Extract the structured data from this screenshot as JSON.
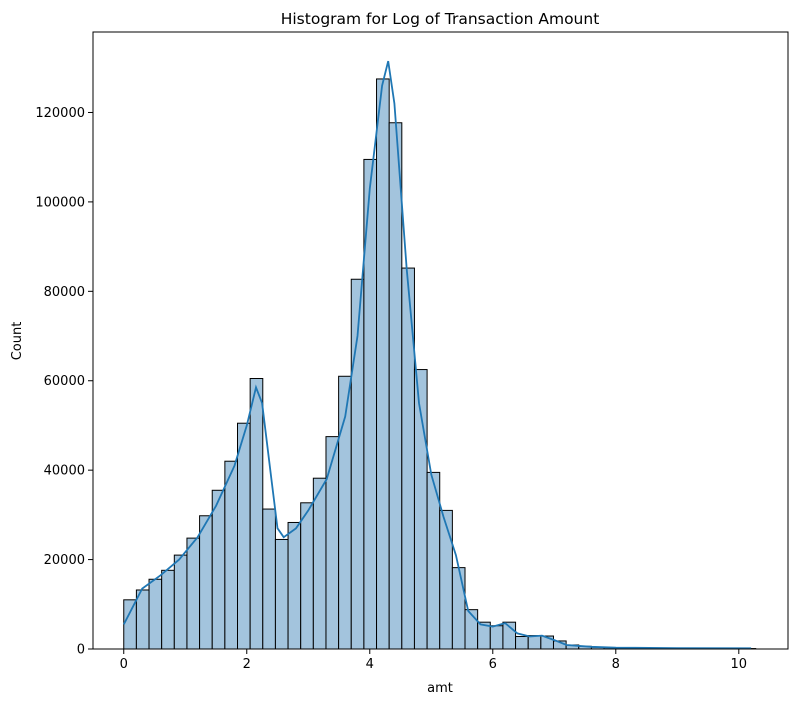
{
  "chart_data": {
    "type": "bar",
    "title": "Histogram for Log of Transaction Amount",
    "xlabel": "amt",
    "ylabel": "Count",
    "xlim": [
      -0.5,
      10.8
    ],
    "ylim": [
      0,
      138000
    ],
    "xticks": [
      0,
      2,
      4,
      6,
      8,
      10
    ],
    "yticks": [
      0,
      20000,
      40000,
      60000,
      80000,
      100000,
      120000
    ],
    "grid": false,
    "bar_color": "#a3c4dd",
    "bar_edge_color": "#000000",
    "line_color": "#1f77b4",
    "bins": {
      "start": 0,
      "width": 0.2055,
      "counts": [
        11000,
        13200,
        15600,
        17600,
        21000,
        24800,
        29800,
        35500,
        42000,
        50500,
        60500,
        31300,
        24500,
        28300,
        32700,
        38200,
        47500,
        61000,
        82700,
        109500,
        127500,
        117700,
        85200,
        62500,
        39500,
        31000,
        18200,
        8800,
        6000,
        5200,
        6000,
        2800,
        3000,
        2900,
        1800,
        900,
        600,
        400,
        300,
        250,
        220,
        200,
        180,
        160,
        150,
        140,
        130,
        120,
        110,
        100
      ]
    },
    "kde": {
      "x": [
        0,
        0.3,
        0.6,
        0.9,
        1.2,
        1.5,
        1.8,
        2.0,
        2.15,
        2.25,
        2.4,
        2.5,
        2.6,
        2.8,
        3.0,
        3.3,
        3.6,
        3.8,
        4.0,
        4.2,
        4.3,
        4.4,
        4.6,
        4.8,
        5.0,
        5.2,
        5.4,
        5.6,
        5.8,
        6.0,
        6.2,
        6.4,
        6.6,
        6.8,
        7.0,
        7.2,
        7.6,
        8.0,
        9.0,
        10.2
      ],
      "y": [
        5500,
        13500,
        16500,
        20000,
        25000,
        32000,
        41000,
        50000,
        58500,
        55000,
        38000,
        27000,
        25000,
        27000,
        31000,
        38000,
        52000,
        70000,
        103000,
        126000,
        131500,
        122000,
        85000,
        55000,
        39000,
        29500,
        21000,
        8500,
        5500,
        5000,
        5800,
        3500,
        2800,
        3000,
        2000,
        900,
        500,
        300,
        200,
        150
      ]
    }
  }
}
